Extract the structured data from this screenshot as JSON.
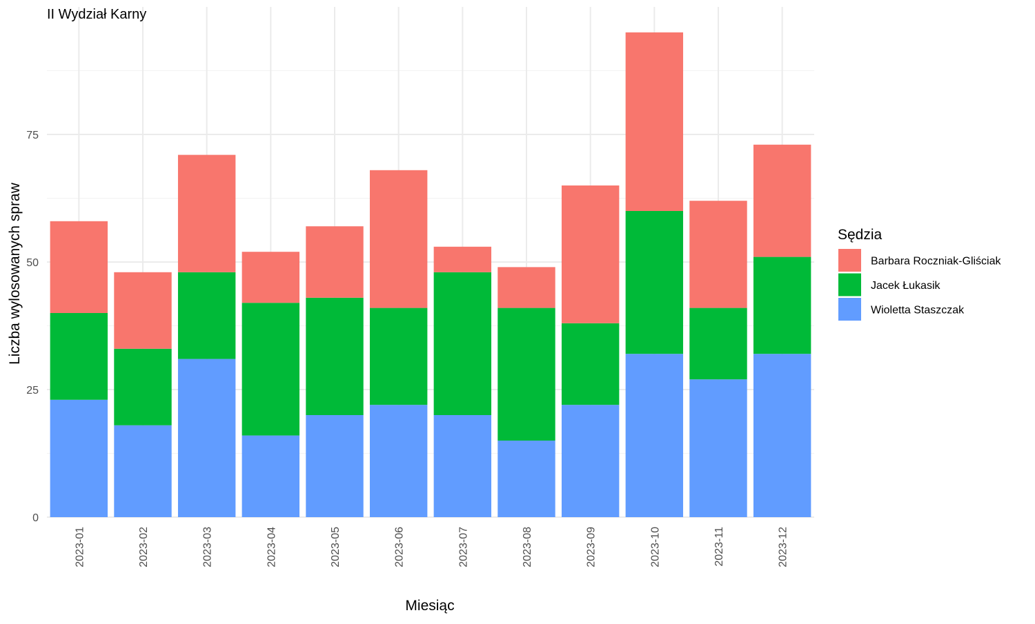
{
  "chart_data": {
    "type": "bar",
    "stacked": true,
    "title": "II Wydział Karny",
    "xlabel": "Miesiąc",
    "ylabel": "Liczba wylosowanych spraw",
    "ylim": [
      0,
      100
    ],
    "yticks": [
      0,
      25,
      50,
      75
    ],
    "grid": true,
    "legend_title": "Sędzia",
    "legend_position": "right",
    "categories": [
      "2023-01",
      "2023-02",
      "2023-03",
      "2023-04",
      "2023-05",
      "2023-06",
      "2023-07",
      "2023-08",
      "2023-09",
      "2023-10",
      "2023-11",
      "2023-12"
    ],
    "series": [
      {
        "name": "Wioletta Staszczak",
        "color": "#619CFF",
        "values": [
          23,
          18,
          31,
          16,
          20,
          22,
          20,
          15,
          22,
          32,
          27,
          32
        ]
      },
      {
        "name": "Jacek Łukasik",
        "color": "#00BA38",
        "values": [
          17,
          15,
          17,
          26,
          23,
          19,
          28,
          26,
          16,
          28,
          14,
          19
        ]
      },
      {
        "name": "Barbara Roczniak-Gliściak",
        "color": "#F8766D",
        "values": [
          18,
          15,
          23,
          10,
          14,
          27,
          5,
          8,
          27,
          35,
          21,
          22
        ]
      }
    ],
    "legend_order": [
      "Barbara Roczniak-Gliściak",
      "Jacek Łukasik",
      "Wioletta Staszczak"
    ]
  }
}
